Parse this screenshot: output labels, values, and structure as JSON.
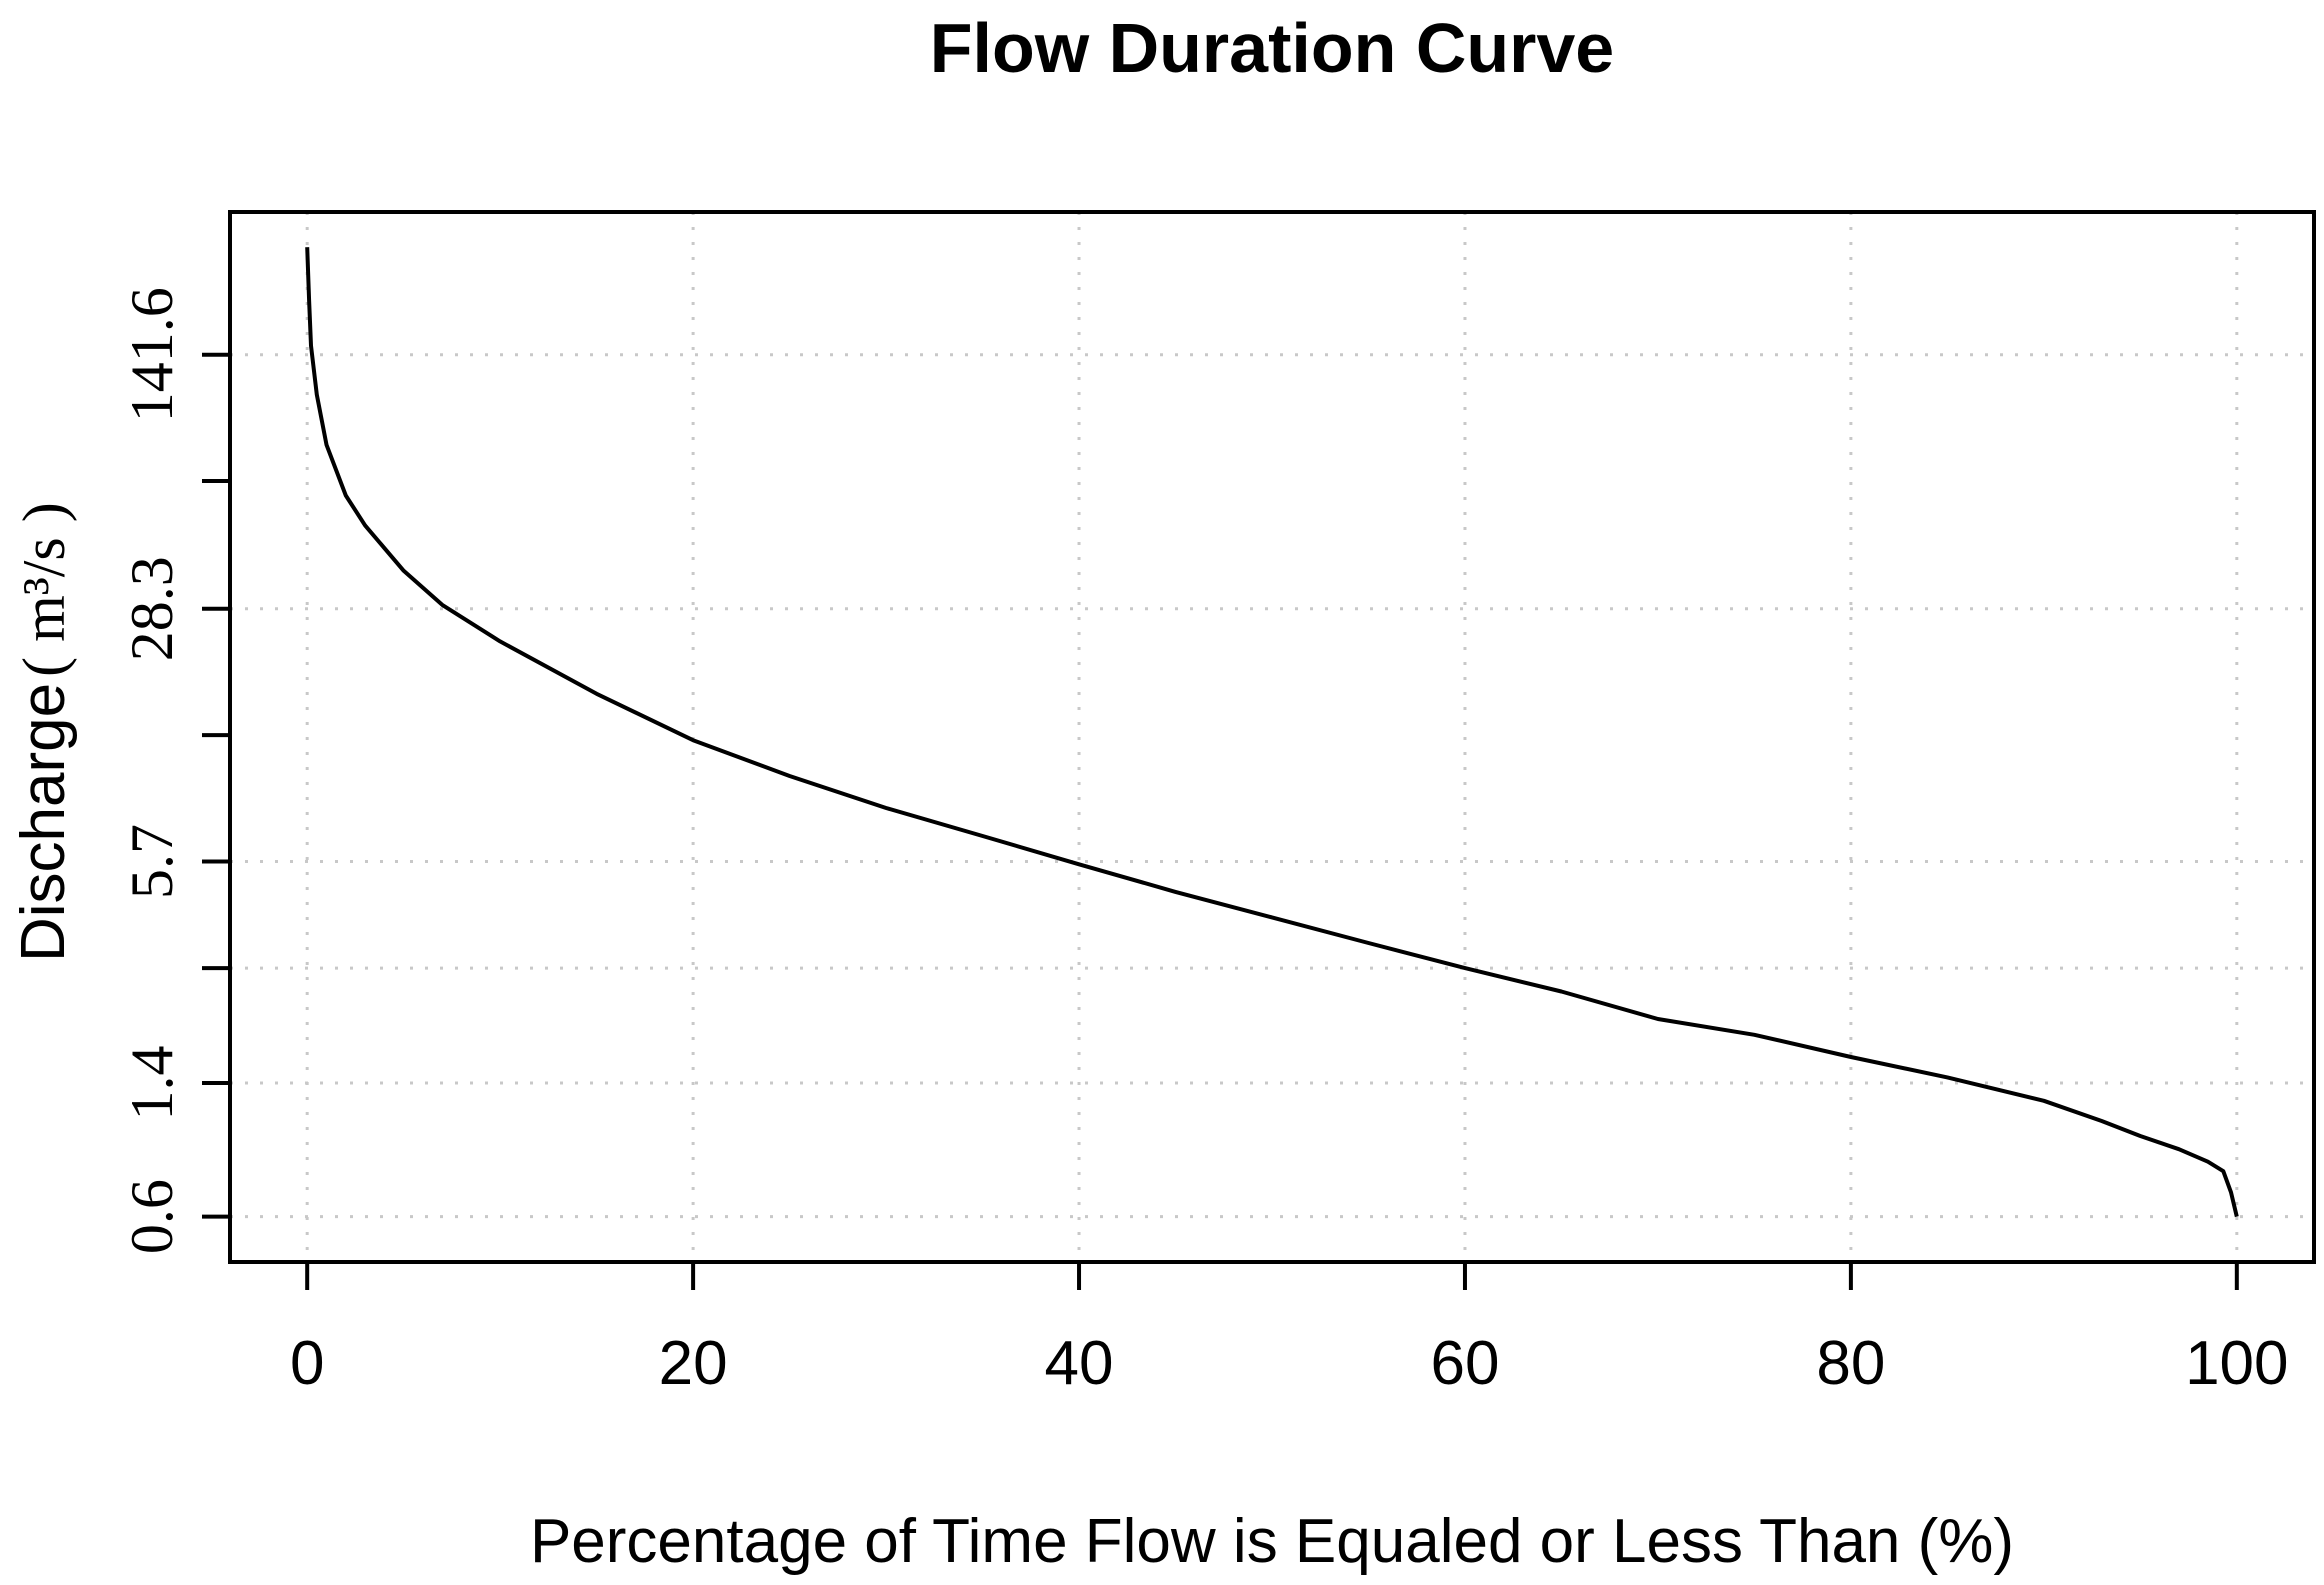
{
  "chart_data": {
    "type": "line",
    "title": "Flow Duration Curve",
    "xlabel": "Percentage of Time Flow is Equaled or Less Than (%)",
    "ylabel": "Discharge",
    "ylabel_unit": "( m³/s )",
    "yscale": "log",
    "xlim": [
      -4,
      104
    ],
    "ylim": [
      0.45,
      350
    ],
    "grid": true,
    "x_ticks": [
      0,
      20,
      40,
      60,
      80,
      100
    ],
    "x_tick_labels": [
      "0",
      "20",
      "40",
      "60",
      "80",
      "100"
    ],
    "y_ticks": [
      0.6,
      1.4,
      2.9,
      5.7,
      12.7,
      28.3,
      63.6,
      141.6
    ],
    "y_tick_labels": [
      "0.6",
      "1.4",
      "",
      "5.7",
      "",
      "28.3",
      "",
      "141.6"
    ],
    "x_grid": [
      0,
      20,
      40,
      60,
      80,
      100
    ],
    "y_grid": [
      0.6,
      1.4,
      2.9,
      5.7,
      28.3,
      141.6
    ],
    "series": [
      {
        "name": "Flow duration curve",
        "x": [
          0,
          0.1,
          0.2,
          0.5,
          1,
          2,
          3,
          5,
          7,
          10,
          15,
          20,
          25,
          30,
          35,
          40,
          45,
          50,
          55,
          60,
          65,
          70,
          75,
          80,
          85,
          90,
          93,
          95,
          97,
          98.5,
          99.3,
          99.7,
          100
        ],
        "y": [
          280,
          200,
          150,
          110,
          80,
          58,
          48,
          36,
          29,
          23,
          16.5,
          12.3,
          9.8,
          8.0,
          6.7,
          5.6,
          4.7,
          4.0,
          3.4,
          2.9,
          2.5,
          2.1,
          1.9,
          1.65,
          1.45,
          1.25,
          1.1,
          1.0,
          0.92,
          0.85,
          0.8,
          0.7,
          0.6
        ]
      }
    ]
  }
}
